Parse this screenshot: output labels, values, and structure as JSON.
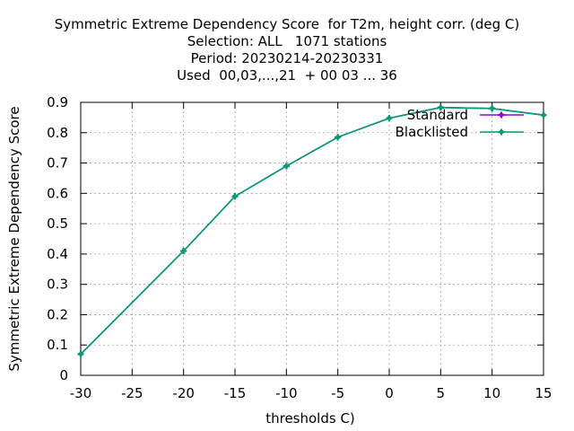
{
  "title_lines": [
    "Symmetric Extreme Dependency Score  for T2m, height corr. (deg C)",
    "Selection: ALL   1071 stations",
    "Period: 20230214-20230331",
    "Used  00,03,...,21  + 00 03 ... 36"
  ],
  "chart_data": {
    "type": "line",
    "xlabel": "thresholds C)",
    "ylabel": "Symmetric Extreme Dependency Score",
    "xlim": [
      -30,
      15
    ],
    "ylim": [
      0,
      0.9
    ],
    "xticks": [
      -30,
      -25,
      -20,
      -15,
      -10,
      -5,
      0,
      5,
      10,
      15
    ],
    "yticks": [
      0,
      0.1,
      0.2,
      0.3,
      0.4,
      0.5,
      0.6,
      0.7,
      0.8,
      0.9
    ],
    "grid": true,
    "legend_position": "top-right",
    "series": [
      {
        "name": "Standard",
        "color": "#9400d3",
        "x": [
          -30,
          -20,
          -15,
          -10,
          -5,
          0,
          5,
          10,
          15
        ],
        "y": [
          0.07,
          0.41,
          0.59,
          0.69,
          0.785,
          0.848,
          0.883,
          0.88,
          0.858
        ]
      },
      {
        "name": "Blacklisted",
        "color": "#009e73",
        "x": [
          -30,
          -20,
          -15,
          -10,
          -5,
          0,
          5,
          10,
          15
        ],
        "y": [
          0.07,
          0.41,
          0.59,
          0.69,
          0.785,
          0.848,
          0.883,
          0.88,
          0.858
        ]
      }
    ]
  }
}
